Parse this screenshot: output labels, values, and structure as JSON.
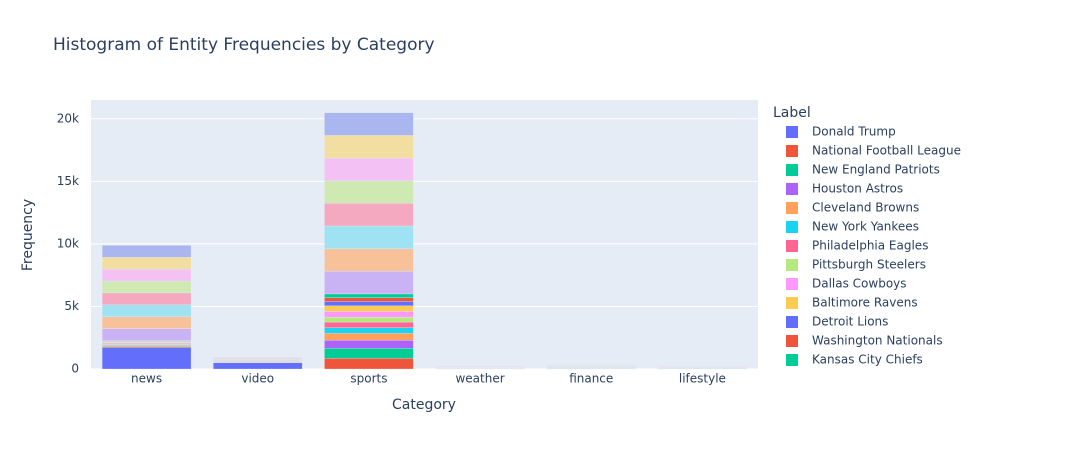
{
  "chart_data": {
    "type": "bar",
    "stacked": true,
    "title": "Histogram of Entity Frequencies by Category",
    "x_label": "Category",
    "y_label": "Frequency",
    "legend_title": "Label",
    "categories": [
      "news",
      "video",
      "sports",
      "weather",
      "finance",
      "lifestyle"
    ],
    "ylim": [
      0,
      21500
    ],
    "yticks": [
      0,
      {
        "value": 5000,
        "label": "5k"
      },
      {
        "value": 10000,
        "label": "10k"
      },
      {
        "value": 15000,
        "label": "15k"
      },
      {
        "value": 20000,
        "label": "20k"
      }
    ],
    "grid": true,
    "legend_position": "right",
    "series": [
      {
        "name": "Donald Trump",
        "color": "#636efa",
        "values": [
          1700,
          500,
          0,
          0,
          0,
          0
        ]
      },
      {
        "name": "National Football League",
        "color": "#ef553b",
        "values": [
          80,
          0,
          850,
          0,
          0,
          0
        ]
      },
      {
        "name": "New England Patriots",
        "color": "#00cc96",
        "values": [
          60,
          0,
          800,
          0,
          0,
          0
        ]
      },
      {
        "name": "Houston Astros",
        "color": "#ab63fa",
        "values": [
          40,
          0,
          650,
          0,
          0,
          0
        ]
      },
      {
        "name": "Cleveland Browns",
        "color": "#ffa15a",
        "values": [
          60,
          0,
          550,
          0,
          0,
          0
        ]
      },
      {
        "name": "New York Yankees",
        "color": "#19d3f3",
        "values": [
          50,
          0,
          450,
          0,
          0,
          0
        ]
      },
      {
        "name": "Philadelphia Eagles",
        "color": "#ff6692",
        "values": [
          50,
          0,
          450,
          0,
          0,
          0
        ]
      },
      {
        "name": "Pittsburgh Steelers",
        "color": "#b6e880",
        "values": [
          50,
          0,
          400,
          0,
          0,
          0
        ]
      },
      {
        "name": "Dallas Cowboys",
        "color": "#ff97ff",
        "values": [
          50,
          0,
          450,
          0,
          0,
          0
        ]
      },
      {
        "name": "Baltimore Ravens",
        "color": "#fecb52",
        "values": [
          40,
          0,
          450,
          0,
          0,
          0
        ]
      },
      {
        "name": "Detroit Lions",
        "color": "#636efa",
        "values": [
          40,
          0,
          350,
          0,
          0,
          0
        ]
      },
      {
        "name": "Washington Nationals",
        "color": "#ef553b",
        "values": [
          30,
          0,
          300,
          0,
          0,
          0
        ]
      },
      {
        "name": "Kansas City Chiefs",
        "color": "#00cc96",
        "values": [
          30,
          0,
          300,
          0,
          0,
          0
        ]
      },
      {
        "name": null,
        "color": "#c9b3f5",
        "values": [
          950,
          50,
          1810,
          25,
          35,
          30
        ]
      },
      {
        "name": null,
        "color": "#f7c29a",
        "values": [
          950,
          50,
          1810,
          25,
          35,
          30
        ]
      },
      {
        "name": null,
        "color": "#9fe3f2",
        "values": [
          950,
          50,
          1810,
          25,
          35,
          30
        ]
      },
      {
        "name": null,
        "color": "#f5a9c0",
        "values": [
          950,
          50,
          1810,
          25,
          35,
          30
        ]
      },
      {
        "name": null,
        "color": "#cfe9b3",
        "values": [
          950,
          50,
          1810,
          25,
          35,
          30
        ]
      },
      {
        "name": null,
        "color": "#f4c1f4",
        "values": [
          950,
          50,
          1810,
          25,
          35,
          30
        ]
      },
      {
        "name": null,
        "color": "#f2dea0",
        "values": [
          950,
          50,
          1810,
          25,
          35,
          30
        ]
      },
      {
        "name": null,
        "color": "#a9b6f0",
        "values": [
          950,
          50,
          1810,
          25,
          35,
          30
        ]
      }
    ]
  }
}
